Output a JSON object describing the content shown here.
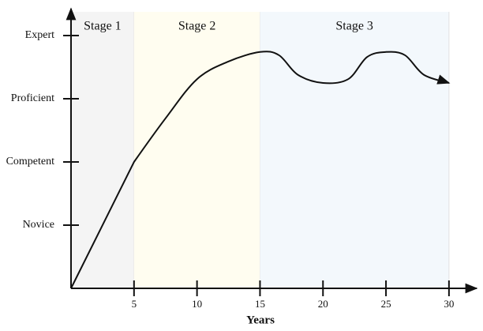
{
  "chart_data": {
    "type": "line",
    "x_label": "Years",
    "xlim": [
      0,
      32.2
    ],
    "ylim": [
      0,
      4.4
    ],
    "xticks": [
      5,
      10,
      15,
      20,
      25,
      30
    ],
    "yticks": [
      {
        "value": 1,
        "label": "Novice"
      },
      {
        "value": 2,
        "label": "Competent"
      },
      {
        "value": 3,
        "label": "Proficient"
      },
      {
        "value": 4,
        "label": "Expert"
      }
    ],
    "stages": [
      {
        "label": "Stage 1",
        "start": 0,
        "end": 5,
        "color": "#f4f4f4"
      },
      {
        "label": "Stage 2",
        "start": 5,
        "end": 15,
        "color": "#fffdf0"
      },
      {
        "label": "Stage 3",
        "start": 15,
        "end": 30,
        "color": "#f3f8fc"
      }
    ],
    "series": [
      {
        "color": "#111111",
        "x": [
          0,
          5,
          7.5,
          10,
          12.5,
          15,
          16.5,
          18,
          20,
          22,
          23.5,
          25,
          26.5,
          28,
          30
        ],
        "values": [
          0,
          2,
          2.69,
          3.31,
          3.59,
          3.74,
          3.69,
          3.38,
          3.25,
          3.31,
          3.66,
          3.74,
          3.69,
          3.38,
          3.25
        ]
      }
    ]
  }
}
